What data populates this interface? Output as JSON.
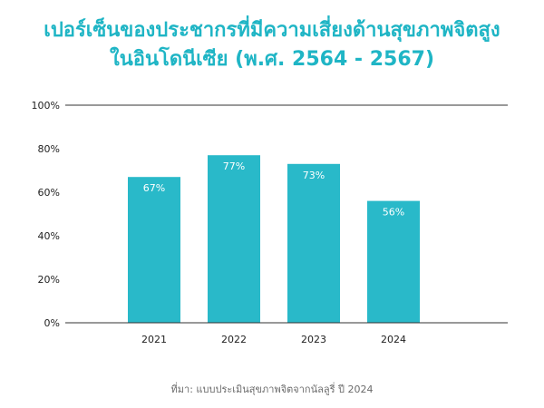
{
  "title": {
    "line1": "เปอร์เซ็นของประชากรที่มีความเสี่ยงด้านสุขภาพจิตสูง",
    "line2": "ในอินโดนีเซีย (พ.ศ. 2564 - 2567)"
  },
  "footer": {
    "source": "ที่มา: แบบประเมินสุขภาพจิตจากนัลลูรี่ ปี 2024"
  },
  "colors": {
    "accent": "#29b9c9",
    "title": "#1fb5c5",
    "axis": "#333333",
    "text": "#222222"
  },
  "chart_data": {
    "type": "bar",
    "title": "เปอร์เซ็นของประชากรที่มีความเสี่ยงด้านสุขภาพจิตสูงในอินโดนีเซีย (พ.ศ. 2564 - 2567)",
    "categories": [
      "2021",
      "2022",
      "2023",
      "2024"
    ],
    "values": [
      67,
      77,
      73,
      56
    ],
    "data_labels": [
      "67%",
      "77%",
      "73%",
      "56%"
    ],
    "ylim": [
      0,
      100
    ],
    "yticks": [
      0,
      20,
      40,
      60,
      80,
      100
    ],
    "ytick_labels": [
      "0%",
      "20%",
      "40%",
      "60%",
      "80%",
      "100%"
    ],
    "xlabel": "",
    "ylabel": "",
    "grid": "top-line-only",
    "legend": "none"
  }
}
